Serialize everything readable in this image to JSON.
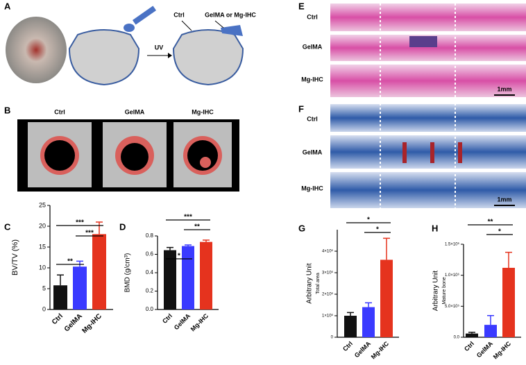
{
  "panel_labels": [
    "A",
    "B",
    "C",
    "D",
    "E",
    "F",
    "G",
    "H"
  ],
  "schematic": {
    "uv": "UV",
    "ctrl": "Ctrl",
    "gel": "GelMA or Mg-IHC"
  },
  "micro_ct_labels": [
    "Ctrl",
    "GelMA",
    "Mg-IHC"
  ],
  "he_labels": [
    "Ctrl",
    "GelMA",
    "Mg-IHC"
  ],
  "he_scale": "1mm",
  "masson_labels": [
    "Ctrl",
    "GelMA",
    "Mg-IHC"
  ],
  "masson_scale": "1mm",
  "chart_data": [
    {
      "type": "bar",
      "ylabel": "BV/TV (%)",
      "categories": [
        "Ctrl",
        "GelMA",
        "Mg-IHC"
      ],
      "colors": [
        "#111111",
        "#3a3aff",
        "#e5331e"
      ],
      "values": [
        5.8,
        10.3,
        18.1
      ],
      "errors": [
        2.5,
        1.3,
        2.9
      ],
      "ylim": [
        0,
        25
      ],
      "yticks": [
        0,
        5,
        10,
        15,
        20,
        25
      ],
      "significance": [
        {
          "between": [
            "Ctrl",
            "GelMA"
          ],
          "label": "**"
        },
        {
          "between": [
            "Ctrl",
            "Mg-IHC"
          ],
          "label": "***"
        },
        {
          "between": [
            "GelMA",
            "Mg-IHC"
          ],
          "label": "***"
        }
      ]
    },
    {
      "type": "bar",
      "ylabel": "BMD (g/cm³)",
      "categories": [
        "Ctrl",
        "GelMA",
        "Mg-IHC"
      ],
      "colors": [
        "#111111",
        "#3a3aff",
        "#e5331e"
      ],
      "values": [
        0.645,
        0.69,
        0.735
      ],
      "errors": [
        0.03,
        0.012,
        0.02
      ],
      "ylim": [
        0,
        0.8
      ],
      "yticks": [
        {
          "value": 0,
          "label": "0.0"
        },
        0.2,
        0.4,
        0.6,
        0.8
      ],
      "significance": [
        {
          "between": [
            "Ctrl",
            "GelMA"
          ],
          "label": "*"
        },
        {
          "between": [
            "Ctrl",
            "Mg-IHC"
          ],
          "label": "***"
        },
        {
          "between": [
            "GelMA",
            "Mg-IHC"
          ],
          "label": "**"
        }
      ]
    },
    {
      "type": "bar",
      "ylabel": "Arbitrary Unit",
      "ysublabel": "Total area",
      "categories": [
        "Ctrl",
        "GelMA",
        "Mg-IHC"
      ],
      "colors": [
        "#111111",
        "#3a3aff",
        "#e5331e"
      ],
      "values": [
        1000000,
        1400000,
        3600000
      ],
      "errors": [
        150000,
        200000,
        1000000
      ],
      "ylim": [
        0,
        5000000
      ],
      "yticks": [
        0,
        {
          "value": 1000000,
          "label": "1×10⁶"
        },
        {
          "value": 2000000,
          "label": "2×10⁶"
        },
        {
          "value": 3000000,
          "label": "3×10⁶"
        },
        {
          "value": 4000000,
          "label": "4×10⁶"
        }
      ],
      "significance": [
        {
          "between": [
            "Ctrl",
            "Mg-IHC"
          ],
          "label": "*"
        },
        {
          "between": [
            "GelMA",
            "Mg-IHC"
          ],
          "label": "*"
        }
      ]
    },
    {
      "type": "bar",
      "ylabel": "Arbitrary Unit",
      "ysublabel": "Mature bone",
      "categories": [
        "Ctrl",
        "GelMA",
        "Mg-IHC"
      ],
      "colors": [
        "#111111",
        "#3a3aff",
        "#e5331e"
      ],
      "values": [
        60000,
        200000,
        1120000
      ],
      "errors": [
        20000,
        150000,
        250000
      ],
      "ylim": [
        0,
        1500000
      ],
      "yticks": [
        {
          "value": 0,
          "label": "0.0"
        },
        {
          "value": 500000,
          "label": "5.0×10⁵"
        },
        {
          "value": 1000000,
          "label": "1.0×10⁶"
        },
        {
          "value": 1500000,
          "label": "1.5×10⁶"
        }
      ],
      "significance": [
        {
          "between": [
            "Ctrl",
            "Mg-IHC"
          ],
          "label": "**"
        },
        {
          "between": [
            "GelMA",
            "Mg-IHC"
          ],
          "label": "*"
        }
      ]
    }
  ]
}
